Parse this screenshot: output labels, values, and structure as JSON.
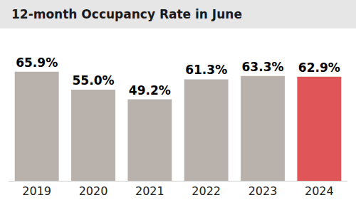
{
  "chart_data": {
    "type": "bar",
    "title": "12-month Occupancy Rate in June",
    "categories": [
      "2019",
      "2020",
      "2021",
      "2022",
      "2023",
      "2024"
    ],
    "values": [
      65.9,
      55.0,
      49.2,
      61.3,
      63.3,
      62.9
    ],
    "value_labels": [
      "65.9%",
      "55.0%",
      "49.2%",
      "61.3%",
      "63.3%",
      "62.9%"
    ],
    "colors": [
      "#b9b1ac",
      "#b9b1ac",
      "#b9b1ac",
      "#b9b1ac",
      "#b9b1ac",
      "#e05558"
    ],
    "ylim": [
      0,
      80
    ],
    "data_labels": true,
    "tick_labels": "x",
    "grid": false
  }
}
